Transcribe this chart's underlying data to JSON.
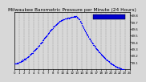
{
  "title": "Milwaukee Barometric Pressure per Minute (24 Hours)",
  "bg_color": "#d8d8d8",
  "plot_bg_color": "#d8d8d8",
  "dot_color": "#0000ff",
  "dot_size": 0.8,
  "legend_color": "#0000cc",
  "ylim": [
    29.0,
    29.85
  ],
  "yticks": [
    29.1,
    29.2,
    29.3,
    29.4,
    29.5,
    29.6,
    29.7,
    29.8
  ],
  "ytick_labels": [
    "29.1",
    "29.2",
    "29.3",
    "29.4",
    "29.5",
    "29.6",
    "29.7",
    "29.8"
  ],
  "xlim": [
    0,
    1440
  ],
  "xtick_positions": [
    0,
    60,
    120,
    180,
    240,
    300,
    360,
    420,
    480,
    540,
    600,
    660,
    720,
    780,
    840,
    900,
    960,
    1020,
    1080,
    1140,
    1200,
    1260,
    1320,
    1380,
    1440
  ],
  "xtick_labels": [
    "0",
    "1",
    "2",
    "3",
    "4",
    "5",
    "6",
    "7",
    "8",
    "9",
    "10",
    "11",
    "12",
    "13",
    "14",
    "15",
    "16",
    "17",
    "18",
    "19",
    "20",
    "21",
    "22",
    "23",
    "24"
  ],
  "grid_color": "#888888",
  "grid_style": "--",
  "title_fontsize": 4.2,
  "tick_fontsize": 2.8,
  "border_color": "#000000",
  "n_points": 288
}
